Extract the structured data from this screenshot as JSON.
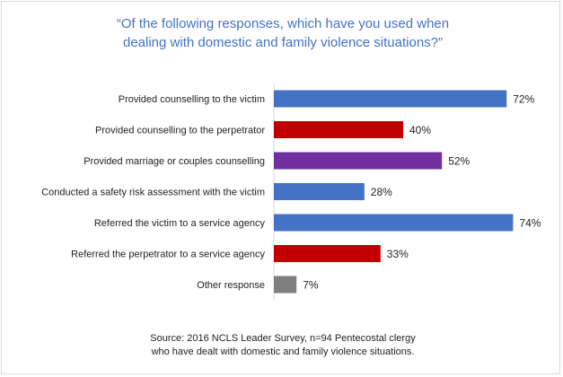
{
  "chart_data": {
    "type": "bar",
    "orientation": "horizontal",
    "title": "“Of the following responses, which have you used when\ndealing with domestic and family violence situations?”",
    "categories": [
      "Provided counselling to the victim",
      "Provided counselling to the perpetrator",
      "Provided marriage or couples counselling",
      "Conducted a safety risk assessment with the victim",
      "Referred the victim to a service agency",
      "Referred the perpetrator to a service agency",
      "Other response"
    ],
    "values": [
      72,
      40,
      52,
      28,
      74,
      33,
      7
    ],
    "value_labels": [
      "72%",
      "40%",
      "52%",
      "28%",
      "74%",
      "33%",
      "7%"
    ],
    "bar_colors": [
      "#4472c4",
      "#c00000",
      "#7030a0",
      "#4472c4",
      "#4472c4",
      "#c00000",
      "#7f7f7f"
    ],
    "xlim": [
      0,
      100
    ],
    "grid": false,
    "xlabel": "",
    "ylabel": ""
  },
  "source": "Source: 2016 NCLS Leader Survey, n=94 Pentecostal clergy\nwho have dealt with domestic and family violence situations.",
  "colors": {
    "title": "#4472c4",
    "text": "#222222",
    "border": "#d9d9d9"
  }
}
